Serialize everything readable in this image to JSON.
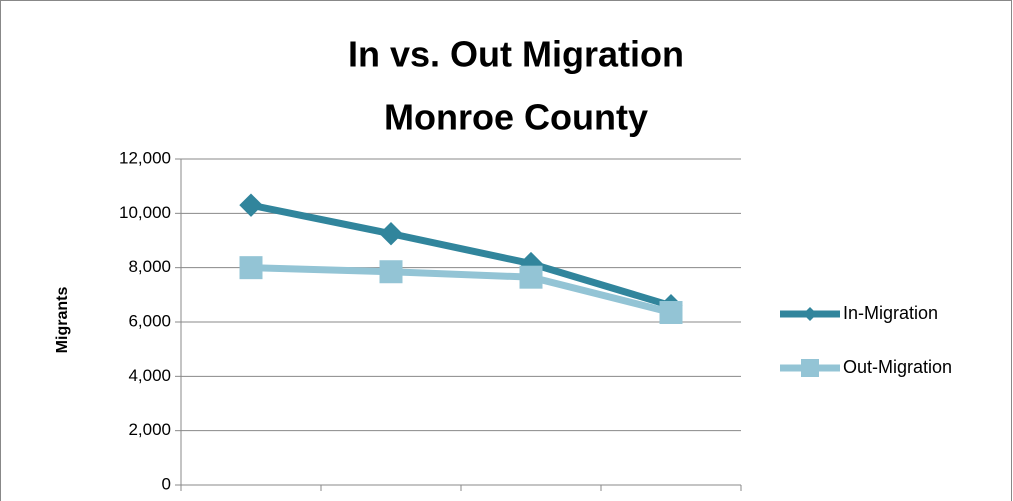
{
  "chart_data": {
    "type": "line",
    "title": [
      "In vs. Out Migration",
      "Monroe County"
    ],
    "y_label": "Migrants",
    "categories": [
      null,
      null,
      null,
      null
    ],
    "series": [
      {
        "name": "In-Migration",
        "color": "#31859c",
        "marker": "diamond",
        "values": [
          10300,
          9250,
          8150,
          6600
        ]
      },
      {
        "name": "Out-Migration",
        "color": "#93c4d5",
        "marker": "square",
        "values": [
          8000,
          7850,
          7650,
          6350
        ]
      }
    ],
    "ylim": [
      0,
      12000
    ],
    "yticks": [
      0,
      {
        "value": 2000,
        "label": "2,000"
      },
      {
        "value": 4000,
        "label": "4,000"
      },
      {
        "value": 6000,
        "label": "6,000"
      },
      {
        "value": 8000,
        "label": "8,000"
      },
      {
        "value": 10000,
        "label": "10,000"
      },
      {
        "value": 12000,
        "label": "12,000"
      }
    ],
    "grid": true,
    "legend": "right"
  }
}
